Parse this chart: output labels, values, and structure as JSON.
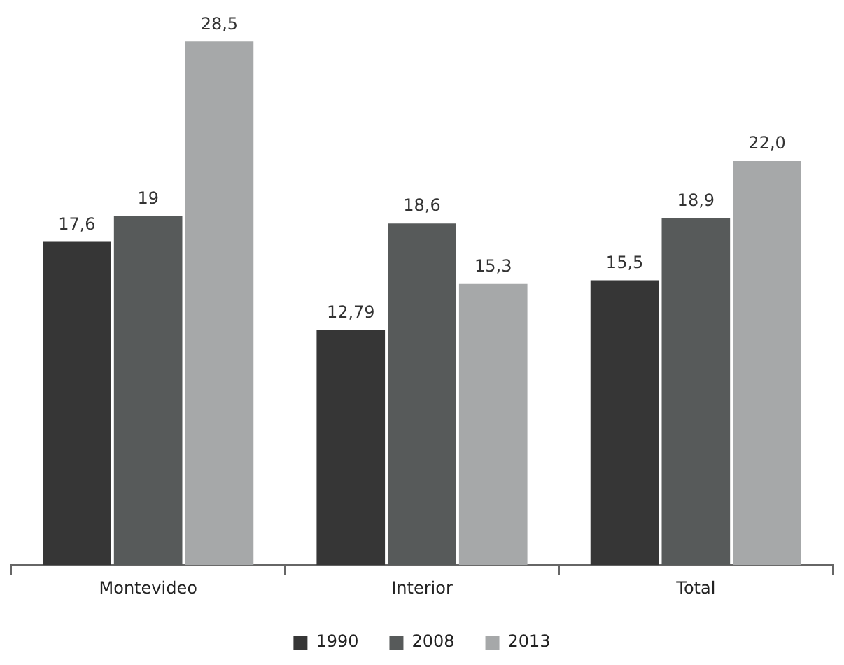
{
  "chart_data": {
    "type": "bar",
    "categories": [
      "Montevideo",
      "Interior",
      "Total"
    ],
    "series": [
      {
        "name": "1990",
        "color": "#363636",
        "values": [
          17.6,
          12.79,
          15.5
        ],
        "value_labels": [
          "17,6",
          "12,79",
          "15,5"
        ]
      },
      {
        "name": "2008",
        "color": "#575a5a",
        "values": [
          19,
          18.6,
          18.9
        ],
        "value_labels": [
          "19",
          "18,6",
          "18,9"
        ]
      },
      {
        "name": "2013",
        "color": "#a6a8a9",
        "values": [
          28.5,
          15.3,
          22.0
        ],
        "value_labels": [
          "28,5",
          "15,3",
          "22,0"
        ]
      }
    ],
    "legend": "bottom",
    "grid": false
  }
}
